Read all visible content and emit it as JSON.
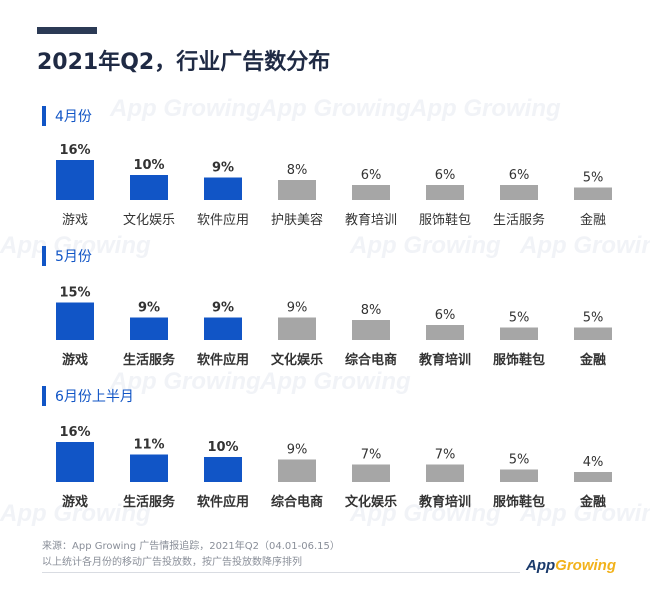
{
  "title": "2021年Q2，行业广告数分布",
  "watermark": "App Growing",
  "colors": {
    "highlight": "#1155c6",
    "normal": "#a6a6a6",
    "title": "#1f2a44",
    "accent": "#1155c6"
  },
  "chart_data": [
    {
      "type": "bar",
      "title": "4月份",
      "categories": [
        "游戏",
        "文化娱乐",
        "软件应用",
        "护肤美容",
        "教育培训",
        "服饰鞋包",
        "生活服务",
        "金融"
      ],
      "values": [
        16,
        10,
        9,
        8,
        6,
        6,
        6,
        5
      ],
      "labels": [
        "16%",
        "10%",
        "9%",
        "8%",
        "6%",
        "6%",
        "6%",
        "5%"
      ],
      "highlighted": [
        true,
        true,
        true,
        false,
        false,
        false,
        false,
        false
      ],
      "unit": "%"
    },
    {
      "type": "bar",
      "title": "5月份",
      "categories": [
        "游戏",
        "生活服务",
        "软件应用",
        "文化娱乐",
        "综合电商",
        "教育培训",
        "服饰鞋包",
        "金融"
      ],
      "values": [
        15,
        9,
        9,
        9,
        8,
        6,
        5,
        5
      ],
      "labels": [
        "15%",
        "9%",
        "9%",
        "9%",
        "8%",
        "6%",
        "5%",
        "5%"
      ],
      "highlighted": [
        true,
        true,
        true,
        false,
        false,
        false,
        false,
        false
      ],
      "unit": "%"
    },
    {
      "type": "bar",
      "title": "6月份上半月",
      "categories": [
        "游戏",
        "生活服务",
        "软件应用",
        "综合电商",
        "文化娱乐",
        "教育培训",
        "服饰鞋包",
        "金融"
      ],
      "values": [
        16,
        11,
        10,
        9,
        7,
        7,
        5,
        4
      ],
      "labels": [
        "16%",
        "11%",
        "10%",
        "9%",
        "7%",
        "7%",
        "5%",
        "4%"
      ],
      "highlighted": [
        true,
        true,
        true,
        false,
        false,
        false,
        false,
        false
      ],
      "unit": "%"
    }
  ],
  "footer": {
    "source": "来源：App Growing 广告情报追踪，2021年Q2（04.01-06.15）",
    "note": "以上统计各月份的移动广告投放数，按广告投放数降序排列"
  },
  "logo": {
    "part1": "App",
    "part2": "Growing"
  }
}
